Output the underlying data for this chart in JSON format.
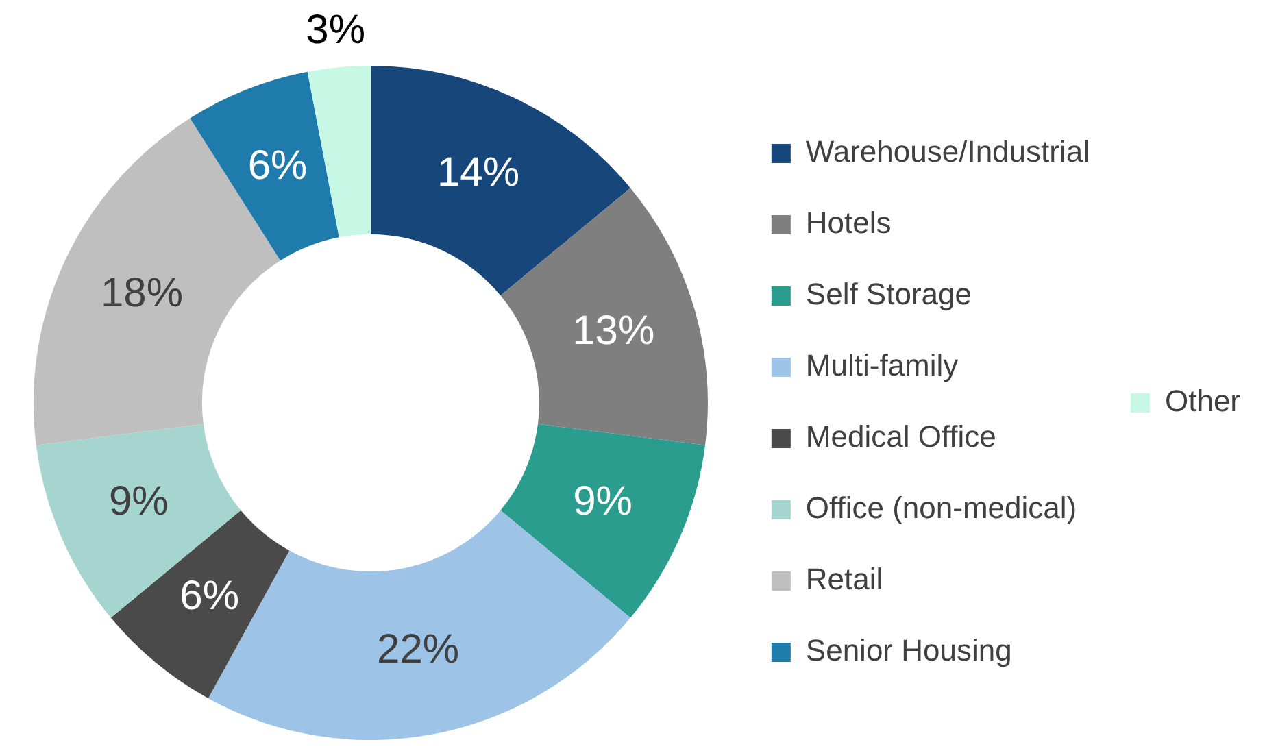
{
  "chart_data": {
    "type": "donut",
    "categories": [
      "Warehouse/Industrial",
      "Hotels",
      "Self Storage",
      "Multi-family",
      "Medical Office",
      "Office (non-medical)",
      "Retail",
      "Senior Housing",
      "Other"
    ],
    "values": [
      14,
      13,
      9,
      22,
      6,
      9,
      18,
      6,
      3
    ],
    "colors": [
      "#17467b",
      "#7f7f7f",
      "#2a9d8f",
      "#9dc3e6",
      "#4a4a4a",
      "#a6d5cf",
      "#bfbfbf",
      "#1f7bab",
      "#c6f8e5"
    ],
    "value_labels": [
      "14%",
      "13%",
      "9%",
      "22%",
      "6%",
      "9%",
      "18%",
      "6%",
      "3%"
    ],
    "legend": "right"
  }
}
